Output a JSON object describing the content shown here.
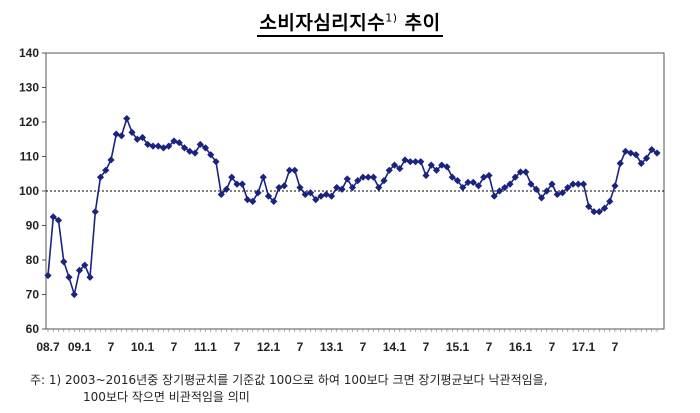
{
  "title": "소비자심리지수",
  "title_sup": "1)",
  "title_suffix": " 추이",
  "footnote": {
    "line1": "주: 1)  2003~2016년중 장기평균치를 기준값 100으로 하여 100보다 크면 장기평균보다 낙관적임을,",
    "line2": "100보다 작으면 비관적임을 의미"
  },
  "chart_data": {
    "type": "line",
    "title": "소비자심리지수 추이",
    "ylim": [
      60,
      140
    ],
    "yticks": [
      60,
      70,
      80,
      90,
      100,
      110,
      120,
      130,
      140
    ],
    "reference_line": 100,
    "x_tick_labels": [
      {
        "label": "08.7",
        "index": 0
      },
      {
        "label": "09.1",
        "index": 6
      },
      {
        "label": "7",
        "index": 12
      },
      {
        "label": "10.1",
        "index": 18
      },
      {
        "label": "7",
        "index": 24
      },
      {
        "label": "11.1",
        "index": 30
      },
      {
        "label": "7",
        "index": 36
      },
      {
        "label": "12.1",
        "index": 42
      },
      {
        "label": "7",
        "index": 48
      },
      {
        "label": "13.1",
        "index": 54
      },
      {
        "label": "7",
        "index": 60
      },
      {
        "label": "14.1",
        "index": 66
      },
      {
        "label": "7",
        "index": 72
      },
      {
        "label": "15.1",
        "index": 78
      },
      {
        "label": "7",
        "index": 84
      },
      {
        "label": "16.1",
        "index": 90
      },
      {
        "label": "7",
        "index": 96
      },
      {
        "label": "17.1",
        "index": 102
      },
      {
        "label": "7",
        "index": 108
      }
    ],
    "color": "#1a237e",
    "marker": "diamond",
    "series": [
      {
        "values": [
          75.5,
          92.5,
          91.5,
          79.5,
          75,
          70,
          77,
          78.5,
          75,
          94,
          104,
          106,
          109,
          116.5,
          116,
          121,
          117,
          115,
          115.5,
          113.5,
          113,
          113,
          112.5,
          113,
          114.5,
          114,
          112.5,
          111.5,
          111,
          113.5,
          112.5,
          110.5,
          108.5,
          99,
          100.5,
          104,
          102,
          102,
          97.5,
          97,
          99.5,
          104,
          98.5,
          97,
          101,
          101.5,
          106,
          106,
          101,
          99,
          99.5,
          97.5,
          98.5,
          99,
          98.5,
          101,
          100.5,
          103.5,
          101,
          103,
          104,
          104,
          104,
          101,
          103,
          106,
          107.5,
          106.5,
          109,
          108.5,
          108.5,
          108.5,
          104.5,
          107.5,
          106,
          107.5,
          107,
          104,
          103,
          101,
          102.5,
          102.5,
          101.5,
          104,
          104.5,
          98.5,
          100,
          101,
          102,
          104,
          105.5,
          105.5,
          102,
          100.5,
          98,
          100,
          102,
          99,
          99.5,
          101,
          102,
          102,
          102,
          95.5,
          94,
          94,
          95,
          97,
          101.5,
          108,
          111.5,
          111,
          110.5,
          108,
          109.5,
          112,
          111
        ]
      }
    ]
  }
}
